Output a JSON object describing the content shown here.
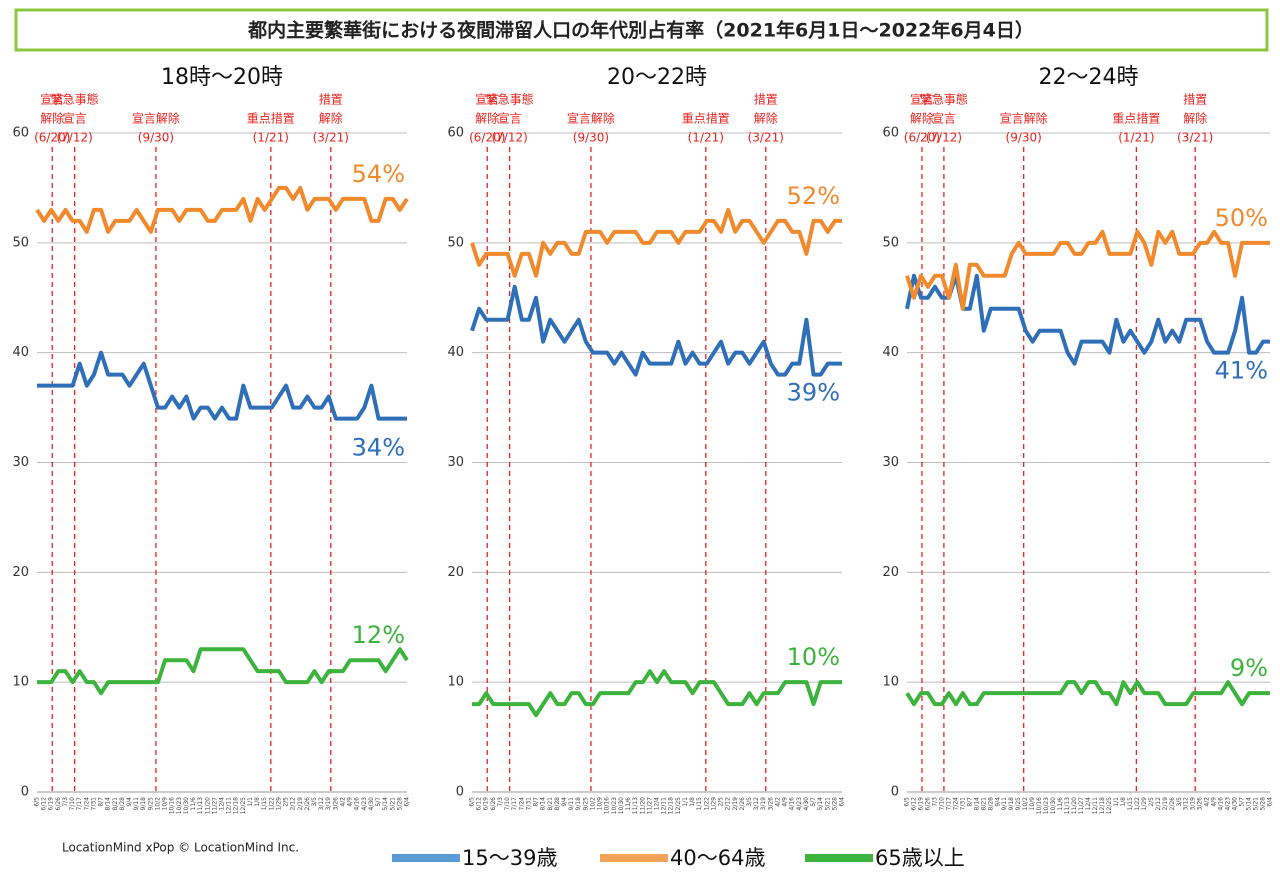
{
  "title": "都内主要繁華街における夜間滞留人口の年代別占有率（2021年6月1日～2022年6月4日）",
  "footer": "LocationMind xPop © LocationMind Inc.",
  "chart_data": [
    {
      "type": "line",
      "title": "18時～20時",
      "ylim": [
        0,
        60
      ],
      "yticks": [
        0,
        10,
        20,
        30,
        40,
        50,
        60
      ],
      "grid": true,
      "categories": [
        "6/5",
        "6/12",
        "6/19",
        "6/26",
        "7/3",
        "7/10",
        "7/17",
        "7/24",
        "7/31",
        "8/7",
        "8/14",
        "8/21",
        "8/28",
        "9/4",
        "9/11",
        "9/18",
        "9/25",
        "10/2",
        "10/9",
        "10/16",
        "10/23",
        "10/30",
        "11/6",
        "11/13",
        "11/20",
        "11/27",
        "12/4",
        "12/11",
        "12/18",
        "12/25",
        "1/1",
        "1/8",
        "1/15",
        "1/22",
        "1/29",
        "2/5",
        "2/12",
        "2/19",
        "2/26",
        "3/5",
        "3/12",
        "3/19",
        "3/26",
        "4/2",
        "4/9",
        "4/16",
        "4/23",
        "4/30",
        "5/7",
        "5/14",
        "5/21",
        "5/28",
        "6/4"
      ],
      "annotations": [
        {
          "lines": [
            "宣言",
            "解除"
          ],
          "date": "(6/20)"
        },
        {
          "lines": [
            "緊急事態",
            "宣言"
          ],
          "date": "(7/12)"
        },
        {
          "lines": [
            "宣言解除"
          ],
          "date": "(9/30)"
        },
        {
          "lines": [
            "重点措置"
          ],
          "date": "(1/21)"
        },
        {
          "lines": [
            "措置",
            "解除"
          ],
          "date": "(3/21)"
        }
      ],
      "series": [
        {
          "name": "15～39歳",
          "color": "#2e6fb7",
          "legend_color": "#5b9bd5",
          "end_label": "34%",
          "values": [
            37,
            37,
            37,
            37,
            37,
            37,
            39,
            37,
            38,
            40,
            38,
            38,
            38,
            37,
            38,
            39,
            37,
            35,
            35,
            36,
            35,
            36,
            34,
            35,
            35,
            34,
            35,
            34,
            34,
            37,
            35,
            35,
            35,
            35,
            36,
            37,
            35,
            35,
            36,
            35,
            35,
            36,
            34,
            34,
            34,
            34,
            35,
            37,
            34,
            34,
            34,
            34,
            34
          ]
        },
        {
          "name": "40～64歳",
          "color": "#f08a2c",
          "legend_color": "#f4a15a",
          "end_label": "54%",
          "values": [
            53,
            52,
            53,
            52,
            53,
            52,
            52,
            51,
            53,
            53,
            51,
            52,
            52,
            52,
            53,
            52,
            51,
            53,
            53,
            53,
            52,
            53,
            53,
            53,
            52,
            52,
            53,
            53,
            53,
            54,
            52,
            54,
            53,
            54,
            55,
            55,
            54,
            55,
            53,
            54,
            54,
            54,
            53,
            54,
            54,
            54,
            54,
            52,
            52,
            54,
            54,
            53,
            54
          ]
        },
        {
          "name": "65歳以上",
          "color": "#3cb33c",
          "legend_color": "#3cb33c",
          "end_label": "12%",
          "values": [
            10,
            10,
            10,
            11,
            11,
            10,
            11,
            10,
            10,
            9,
            10,
            10,
            10,
            10,
            10,
            10,
            10,
            10,
            12,
            12,
            12,
            12,
            11,
            13,
            13,
            13,
            13,
            13,
            13,
            13,
            12,
            11,
            11,
            11,
            11,
            10,
            10,
            10,
            10,
            11,
            10,
            11,
            11,
            11,
            12,
            12,
            12,
            12,
            12,
            11,
            12,
            13,
            12
          ]
        }
      ]
    },
    {
      "type": "line",
      "title": "20～22時",
      "ylim": [
        0,
        60
      ],
      "yticks": [
        0,
        10,
        20,
        30,
        40,
        50,
        60
      ],
      "grid": true,
      "categories": [
        "6/5",
        "6/12",
        "6/19",
        "6/26",
        "7/3",
        "7/10",
        "7/17",
        "7/24",
        "7/31",
        "8/7",
        "8/14",
        "8/21",
        "8/28",
        "9/4",
        "9/11",
        "9/18",
        "9/25",
        "10/2",
        "10/9",
        "10/16",
        "10/23",
        "10/30",
        "11/6",
        "11/13",
        "11/20",
        "11/27",
        "12/4",
        "12/11",
        "12/18",
        "12/25",
        "1/1",
        "1/8",
        "1/15",
        "1/22",
        "1/29",
        "2/5",
        "2/12",
        "2/19",
        "2/26",
        "3/5",
        "3/12",
        "3/19",
        "3/26",
        "4/2",
        "4/9",
        "4/16",
        "4/23",
        "4/30",
        "5/7",
        "5/14",
        "5/21",
        "5/28",
        "6/4"
      ],
      "annotations": [
        {
          "lines": [
            "宣言",
            "解除"
          ],
          "date": "(6/20)"
        },
        {
          "lines": [
            "緊急事態",
            "宣言"
          ],
          "date": "(7/12)"
        },
        {
          "lines": [
            "宣言解除"
          ],
          "date": "(9/30)"
        },
        {
          "lines": [
            "重点措置"
          ],
          "date": "(1/21)"
        },
        {
          "lines": [
            "措置",
            "解除"
          ],
          "date": "(3/21)"
        }
      ],
      "series": [
        {
          "name": "15～39歳",
          "color": "#2e6fb7",
          "legend_color": "#5b9bd5",
          "end_label": "39%",
          "values": [
            42,
            44,
            43,
            43,
            43,
            43,
            46,
            43,
            43,
            45,
            41,
            43,
            42,
            41,
            42,
            43,
            41,
            40,
            40,
            40,
            39,
            40,
            39,
            38,
            40,
            39,
            39,
            39,
            39,
            41,
            39,
            40,
            39,
            39,
            40,
            41,
            39,
            40,
            40,
            39,
            40,
            41,
            39,
            38,
            38,
            39,
            39,
            43,
            38,
            38,
            39,
            39,
            39
          ]
        },
        {
          "name": "40～64歳",
          "color": "#f08a2c",
          "legend_color": "#f4a15a",
          "end_label": "52%",
          "values": [
            50,
            48,
            49,
            49,
            49,
            49,
            47,
            49,
            49,
            47,
            50,
            49,
            50,
            50,
            49,
            49,
            51,
            51,
            51,
            50,
            51,
            51,
            51,
            51,
            50,
            50,
            51,
            51,
            51,
            50,
            51,
            51,
            51,
            52,
            52,
            51,
            53,
            51,
            52,
            52,
            51,
            50,
            51,
            52,
            52,
            51,
            51,
            49,
            52,
            52,
            51,
            52,
            52
          ]
        },
        {
          "name": "65歳以上",
          "color": "#3cb33c",
          "legend_color": "#3cb33c",
          "end_label": "10%",
          "values": [
            8,
            8,
            9,
            8,
            8,
            8,
            8,
            8,
            8,
            7,
            8,
            9,
            8,
            8,
            9,
            9,
            8,
            8,
            9,
            9,
            9,
            9,
            9,
            10,
            10,
            11,
            10,
            11,
            10,
            10,
            10,
            9,
            10,
            10,
            10,
            9,
            8,
            8,
            8,
            9,
            8,
            9,
            9,
            9,
            10,
            10,
            10,
            10,
            8,
            10,
            10,
            10,
            10
          ]
        }
      ]
    },
    {
      "type": "line",
      "title": "22～24時",
      "ylim": [
        0,
        60
      ],
      "yticks": [
        0,
        10,
        20,
        30,
        40,
        50,
        60
      ],
      "grid": true,
      "categories": [
        "6/5",
        "6/12",
        "6/19",
        "6/26",
        "7/3",
        "7/10",
        "7/17",
        "7/24",
        "7/31",
        "8/7",
        "8/14",
        "8/21",
        "8/28",
        "9/4",
        "9/11",
        "9/18",
        "9/25",
        "10/2",
        "10/9",
        "10/16",
        "10/23",
        "10/30",
        "11/6",
        "11/13",
        "11/20",
        "11/27",
        "12/4",
        "12/11",
        "12/18",
        "12/25",
        "1/1",
        "1/8",
        "1/15",
        "1/22",
        "1/29",
        "2/5",
        "2/12",
        "2/19",
        "2/26",
        "3/5",
        "3/12",
        "3/19",
        "3/26",
        "4/2",
        "4/9",
        "4/16",
        "4/23",
        "4/30",
        "5/7",
        "5/14",
        "5/21",
        "5/28",
        "6/4"
      ],
      "annotations": [
        {
          "lines": [
            "宣言",
            "解除"
          ],
          "date": "(6/20)"
        },
        {
          "lines": [
            "緊急事態",
            "宣言"
          ],
          "date": "(7/12)"
        },
        {
          "lines": [
            "宣言解除"
          ],
          "date": "(9/30)"
        },
        {
          "lines": [
            "重点措置"
          ],
          "date": "(1/21)"
        },
        {
          "lines": [
            "措置",
            "解除"
          ],
          "date": "(3/21)"
        }
      ],
      "series": [
        {
          "name": "15～39歳",
          "color": "#2e6fb7",
          "legend_color": "#5b9bd5",
          "end_label": "41%",
          "values": [
            44,
            47,
            45,
            45,
            46,
            45,
            45,
            47,
            44,
            44,
            47,
            42,
            44,
            44,
            44,
            44,
            44,
            42,
            41,
            42,
            42,
            42,
            42,
            40,
            39,
            41,
            41,
            41,
            41,
            40,
            43,
            41,
            42,
            41,
            40,
            41,
            43,
            41,
            42,
            41,
            43,
            43,
            43,
            41,
            40,
            40,
            40,
            42,
            45,
            40,
            40,
            41,
            41
          ]
        },
        {
          "name": "40～64歳",
          "color": "#f08a2c",
          "legend_color": "#f4a15a",
          "end_label": "50%",
          "values": [
            47,
            45,
            47,
            46,
            47,
            47,
            45,
            48,
            44,
            48,
            48,
            47,
            47,
            47,
            47,
            49,
            50,
            49,
            49,
            49,
            49,
            49,
            50,
            50,
            49,
            49,
            50,
            50,
            51,
            49,
            49,
            49,
            49,
            51,
            50,
            48,
            51,
            50,
            51,
            49,
            49,
            49,
            50,
            50,
            51,
            50,
            50,
            47,
            50,
            50,
            50,
            50,
            50
          ]
        },
        {
          "name": "65歳以上",
          "color": "#3cb33c",
          "legend_color": "#3cb33c",
          "end_label": "9%",
          "values": [
            9,
            8,
            9,
            9,
            8,
            8,
            9,
            8,
            9,
            8,
            8,
            9,
            9,
            9,
            9,
            9,
            9,
            9,
            9,
            9,
            9,
            9,
            9,
            10,
            10,
            9,
            10,
            10,
            9,
            9,
            8,
            10,
            9,
            10,
            9,
            9,
            9,
            8,
            8,
            8,
            8,
            9,
            9,
            9,
            9,
            9,
            10,
            9,
            8,
            9,
            9,
            9,
            9
          ]
        }
      ]
    }
  ]
}
